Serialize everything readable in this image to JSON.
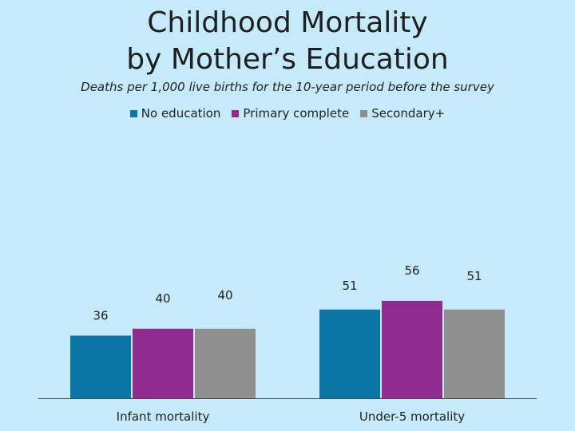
{
  "title": {
    "line1": "Childhood Mortality",
    "line2": "by Mother’s Education"
  },
  "subtitle": "Deaths per 1,000 live births for the 10-year period before the survey",
  "chart_data": {
    "type": "bar",
    "categories": [
      "Infant mortality",
      "Under-5 mortality"
    ],
    "series": [
      {
        "name": "No education",
        "values": [
          36,
          51
        ],
        "color": "#0b76a6"
      },
      {
        "name": "Primary complete",
        "values": [
          40,
          56
        ],
        "color": "#922b8f"
      },
      {
        "name": "Secondary+",
        "values": [
          40,
          51
        ],
        "color": "#8f8f8f"
      }
    ],
    "ylim": [
      0,
      110
    ],
    "grid": false,
    "legend_position": "top"
  }
}
